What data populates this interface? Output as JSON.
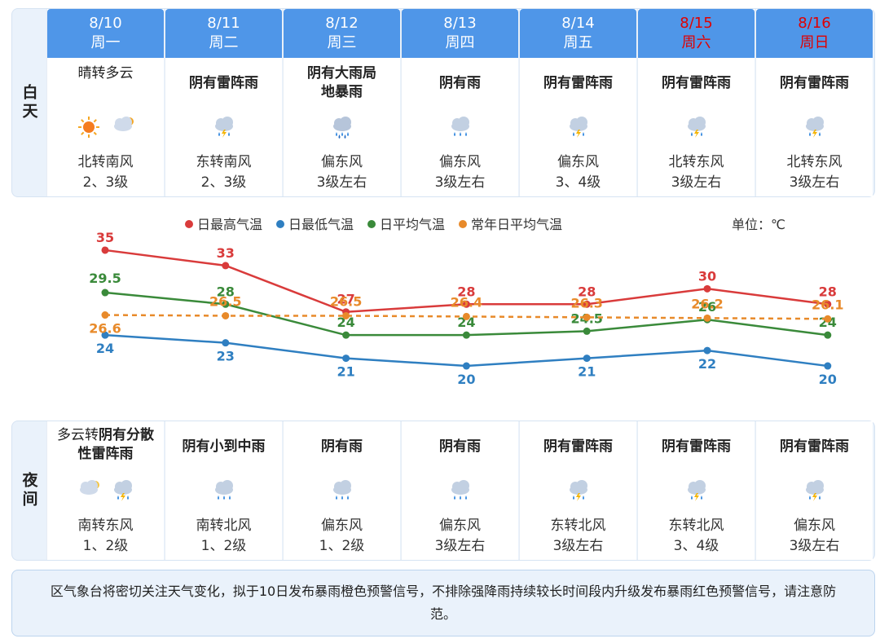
{
  "days": [
    {
      "date": "8/10",
      "weekday": "周一",
      "weekend": false,
      "day": {
        "weather_plain": "晴转多云",
        "weather_bold": "",
        "icons": [
          "sun-icon",
          "cloudy-sun-icon"
        ],
        "wind1": "北转南风",
        "wind2": "2、3级"
      },
      "night": {
        "weather_plain": "多云转",
        "weather_bold": "阴有分散性雷阵雨",
        "icons": [
          "cloudy-moon-icon",
          "thunder-rain-icon"
        ],
        "wind1": "南转东风",
        "wind2": "1、2级"
      }
    },
    {
      "date": "8/11",
      "weekday": "周二",
      "weekend": false,
      "day": {
        "weather_plain": "",
        "weather_bold": "阴有雷阵雨",
        "icons": [
          "thunder-rain-icon"
        ],
        "wind1": "东转南风",
        "wind2": "2、3级"
      },
      "night": {
        "weather_plain": "",
        "weather_bold": "阴有小到中雨",
        "icons": [
          "rain-icon"
        ],
        "wind1": "南转北风",
        "wind2": "1、2级"
      }
    },
    {
      "date": "8/12",
      "weekday": "周三",
      "weekend": false,
      "day": {
        "weather_plain": "",
        "weather_bold": "阴有大雨局地暴雨",
        "icons": [
          "heavy-rain-icon"
        ],
        "wind1": "偏东风",
        "wind2": "3级左右"
      },
      "night": {
        "weather_plain": "",
        "weather_bold": "阴有雨",
        "icons": [
          "rain-icon"
        ],
        "wind1": "偏东风",
        "wind2": "1、2级"
      }
    },
    {
      "date": "8/13",
      "weekday": "周四",
      "weekend": false,
      "day": {
        "weather_plain": "",
        "weather_bold": "阴有雨",
        "icons": [
          "rain-icon"
        ],
        "wind1": "偏东风",
        "wind2": "3级左右"
      },
      "night": {
        "weather_plain": "",
        "weather_bold": "阴有雨",
        "icons": [
          "rain-icon"
        ],
        "wind1": "偏东风",
        "wind2": "3级左右"
      }
    },
    {
      "date": "8/14",
      "weekday": "周五",
      "weekend": false,
      "day": {
        "weather_plain": "",
        "weather_bold": "阴有雷阵雨",
        "icons": [
          "thunder-rain-icon"
        ],
        "wind1": "偏东风",
        "wind2": "3、4级"
      },
      "night": {
        "weather_plain": "",
        "weather_bold": "阴有雷阵雨",
        "icons": [
          "thunder-rain-icon"
        ],
        "wind1": "东转北风",
        "wind2": "3级左右"
      }
    },
    {
      "date": "8/15",
      "weekday": "周六",
      "weekend": true,
      "day": {
        "weather_plain": "",
        "weather_bold": "阴有雷阵雨",
        "icons": [
          "thunder-rain-icon"
        ],
        "wind1": "北转东风",
        "wind2": "3级左右"
      },
      "night": {
        "weather_plain": "",
        "weather_bold": "阴有雷阵雨",
        "icons": [
          "thunder-rain-icon"
        ],
        "wind1": "东转北风",
        "wind2": "3、4级"
      }
    },
    {
      "date": "8/16",
      "weekday": "周日",
      "weekend": true,
      "day": {
        "weather_plain": "",
        "weather_bold": "阴有雷阵雨",
        "icons": [
          "thunder-rain-icon"
        ],
        "wind1": "北转东风",
        "wind2": "3级左右"
      },
      "night": {
        "weather_plain": "",
        "weather_bold": "阴有雷阵雨",
        "icons": [
          "thunder-rain-icon"
        ],
        "wind1": "偏东风",
        "wind2": "3级左右"
      }
    }
  ],
  "labels": {
    "day": "白天",
    "night": "夜间"
  },
  "chart_data": {
    "type": "line",
    "unit_label": "单位：℃",
    "categories": [
      "8/10",
      "8/11",
      "8/12",
      "8/13",
      "8/14",
      "8/15",
      "8/16"
    ],
    "series": [
      {
        "name": "日最高气温",
        "color": "#d93b3b",
        "dashed": false,
        "values": [
          35,
          33,
          27,
          28,
          28,
          30,
          28
        ]
      },
      {
        "name": "日最低气温",
        "color": "#2f7fc1",
        "dashed": false,
        "values": [
          24,
          23,
          21,
          20,
          21,
          22,
          20
        ]
      },
      {
        "name": "日平均气温",
        "color": "#3a8a3a",
        "dashed": false,
        "values": [
          29.5,
          28,
          24,
          24,
          24.5,
          26,
          24
        ]
      },
      {
        "name": "常年日平均气温",
        "color": "#e88a2a",
        "dashed": true,
        "values": [
          26.6,
          26.5,
          26.5,
          26.4,
          26.3,
          26.2,
          26.1
        ]
      }
    ],
    "legend_position": "top",
    "grid": false
  },
  "notice": "区气象台将密切关注天气变化，拟于10日发布暴雨橙色预警信号，不排除强降雨持续较长时间段内升级发布暴雨红色预警信号，请注意防范。"
}
